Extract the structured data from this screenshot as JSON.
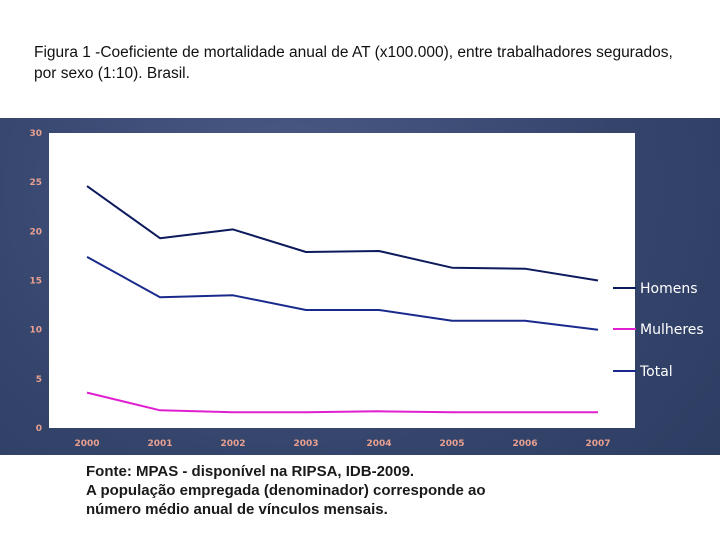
{
  "title": "Figura 1 -Coeficiente de mortalidade anual de AT (x100.000), entre trabalhadores segurados, por sexo (1:10). Brasil.",
  "source_lines": [
    "Fonte: MPAS -  disponível na RIPSA, IDB-2009.",
    "A população empregada (denominador) corresponde ao",
    "número médio anual de vínculos mensais."
  ],
  "colors": {
    "homens": "#0d1a5c",
    "mulheres": "#e020d0",
    "total": "#1a2a8c",
    "tick_text": "#e8a090"
  },
  "chart_data": {
    "type": "line",
    "title": "",
    "xlabel": "",
    "ylabel": "",
    "x": [
      "2000",
      "2001",
      "2002",
      "2003",
      "2004",
      "2005",
      "2006",
      "2007"
    ],
    "ylim": [
      0,
      30
    ],
    "yticks": [
      "0",
      "5",
      "10",
      "15",
      "20",
      "25",
      "30"
    ],
    "grid": false,
    "legend_position": "right",
    "series": [
      {
        "name": "Homens",
        "values": [
          24.6,
          19.3,
          20.2,
          17.9,
          18.0,
          16.3,
          16.2,
          15.0
        ]
      },
      {
        "name": "Mulheres",
        "values": [
          3.6,
          1.8,
          1.6,
          1.6,
          1.7,
          1.6,
          1.6,
          1.6
        ]
      },
      {
        "name": "Total",
        "values": [
          17.4,
          13.3,
          13.5,
          12.0,
          12.0,
          10.9,
          10.9,
          10.0
        ]
      }
    ]
  }
}
